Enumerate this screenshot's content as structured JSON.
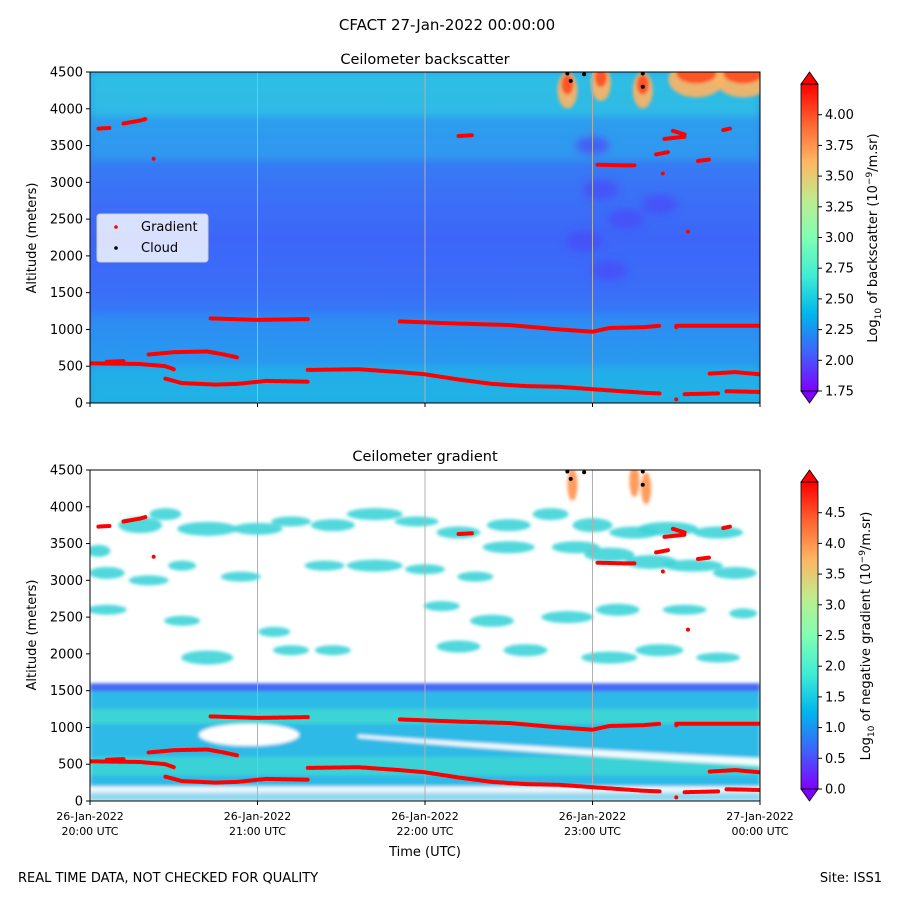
{
  "figure": {
    "title": "CFACT 27-Jan-2022 00:00:00",
    "footer_left": "REAL TIME DATA, NOT CHECKED FOR QUALITY",
    "footer_right": "Site: ISS1"
  },
  "colors": {
    "rainbow": [
      "#8000ff",
      "#4062fa",
      "#00b5eb",
      "#40ecd4",
      "#80ffb4",
      "#c0eb8d",
      "#ffb462",
      "#ff6231",
      "#ff0000"
    ],
    "gradient_marker": "#ff0000",
    "cloud_marker": "#000000",
    "vline": "#b0b0b0"
  },
  "chart_data": [
    {
      "type": "heatmap",
      "title": "Ceilometer backscatter",
      "xlabel": "",
      "ylabel": "Altitude (meters)",
      "ylim": [
        0,
        4500
      ],
      "yticks": [
        0,
        500,
        1000,
        1500,
        2000,
        2500,
        3000,
        3500,
        4000,
        4500
      ],
      "x_range_hours": [
        20,
        24
      ],
      "xtick_hours": [
        20,
        21,
        22,
        23,
        24
      ],
      "xtick_labels_shown": false,
      "grid": "vertical lines at hourly ticks",
      "colorbar": {
        "label_main": "Log",
        "label_sub": "10",
        "label_rest": " of backscatter (10",
        "label_sup": "−9",
        "label_end": "/m.sr)",
        "range": [
          1.75,
          4.25
        ],
        "ticks": [
          "1.75",
          "2.00",
          "2.25",
          "2.50",
          "2.75",
          "3.00",
          "3.25",
          "3.50",
          "3.75",
          "4.00"
        ],
        "tick_values": [
          1.75,
          2.0,
          2.25,
          2.5,
          2.75,
          3.0,
          3.25,
          3.5,
          3.75,
          4.0
        ]
      },
      "legend": {
        "position": "center-left",
        "entries": [
          {
            "label": "Gradient",
            "color": "#ff0000"
          },
          {
            "label": "Cloud",
            "color": "#000000"
          }
        ]
      }
    },
    {
      "type": "heatmap",
      "title": "Ceilometer gradient",
      "xlabel": "Time (UTC)",
      "ylabel": "Altitude (meters)",
      "ylim": [
        0,
        4500
      ],
      "yticks": [
        0,
        500,
        1000,
        1500,
        2000,
        2500,
        3000,
        3500,
        4000,
        4500
      ],
      "x_range_hours": [
        20,
        24
      ],
      "xtick_hours": [
        20,
        21,
        22,
        23,
        24
      ],
      "xtick_labels": [
        [
          "26-Jan-2022",
          "20:00 UTC"
        ],
        [
          "26-Jan-2022",
          "21:00 UTC"
        ],
        [
          "26-Jan-2022",
          "22:00 UTC"
        ],
        [
          "26-Jan-2022",
          "23:00 UTC"
        ],
        [
          "27-Jan-2022",
          "00:00 UTC"
        ]
      ],
      "colorbar": {
        "label_main": "Log",
        "label_sub": "10",
        "label_rest": " of negative gradient (10",
        "label_sup": "−9",
        "label_end": "/m.sr)",
        "range": [
          0,
          5
        ],
        "ticks": [
          "0.0",
          "0.5",
          "1.0",
          "1.5",
          "2.0",
          "2.5",
          "3.0",
          "3.5",
          "4.0",
          "4.5"
        ],
        "tick_values": [
          0,
          0.5,
          1.0,
          1.5,
          2.0,
          2.5,
          3.0,
          3.5,
          4.0,
          4.5
        ]
      }
    }
  ],
  "series": {
    "gradient_segments": [
      {
        "points": [
          [
            20.0,
            540
          ],
          [
            20.3,
            530
          ],
          [
            20.45,
            500
          ],
          [
            20.5,
            460
          ]
        ]
      },
      {
        "points": [
          [
            20.1,
            560
          ],
          [
            20.2,
            570
          ]
        ]
      },
      {
        "points": [
          [
            20.35,
            660
          ],
          [
            20.5,
            690
          ],
          [
            20.7,
            700
          ],
          [
            20.8,
            660
          ],
          [
            20.88,
            620
          ]
        ]
      },
      {
        "points": [
          [
            20.45,
            330
          ],
          [
            20.55,
            270
          ],
          [
            20.75,
            250
          ],
          [
            20.88,
            260
          ],
          [
            21.05,
            300
          ],
          [
            21.3,
            290
          ]
        ]
      },
      {
        "points": [
          [
            20.72,
            1150
          ],
          [
            21.0,
            1130
          ],
          [
            21.3,
            1140
          ]
        ]
      },
      {
        "points": [
          [
            21.3,
            450
          ],
          [
            21.6,
            460
          ],
          [
            21.85,
            420
          ],
          [
            22.0,
            390
          ],
          [
            22.2,
            320
          ],
          [
            22.4,
            260
          ],
          [
            22.6,
            230
          ],
          [
            22.8,
            220
          ],
          [
            23.05,
            180
          ],
          [
            23.3,
            140
          ],
          [
            23.4,
            130
          ]
        ]
      },
      {
        "points": [
          [
            21.85,
            1110
          ],
          [
            22.2,
            1080
          ],
          [
            22.5,
            1060
          ],
          [
            22.8,
            1000
          ],
          [
            23.0,
            970
          ],
          [
            23.1,
            1020
          ],
          [
            23.3,
            1030
          ],
          [
            23.4,
            1050
          ]
        ]
      },
      {
        "points": [
          [
            23.5,
            1050
          ],
          [
            23.7,
            1050
          ],
          [
            24.0,
            1050
          ]
        ]
      },
      {
        "points": [
          [
            23.55,
            120
          ],
          [
            23.75,
            130
          ]
        ]
      },
      {
        "points": [
          [
            23.7,
            400
          ],
          [
            23.85,
            420
          ],
          [
            24.0,
            390
          ]
        ]
      },
      {
        "points": [
          [
            23.8,
            160
          ],
          [
            24.0,
            150
          ]
        ]
      },
      {
        "points": [
          [
            20.05,
            3730
          ],
          [
            20.12,
            3740
          ]
        ]
      },
      {
        "points": [
          [
            20.2,
            3800
          ],
          [
            20.3,
            3840
          ],
          [
            20.33,
            3860
          ]
        ]
      },
      {
        "points": [
          [
            22.2,
            3630
          ],
          [
            22.28,
            3640
          ]
        ]
      },
      {
        "points": [
          [
            23.03,
            3240
          ],
          [
            23.2,
            3230
          ],
          [
            23.25,
            3230
          ]
        ]
      },
      {
        "points": [
          [
            23.38,
            3380
          ],
          [
            23.45,
            3410
          ]
        ]
      },
      {
        "points": [
          [
            23.43,
            3590
          ],
          [
            23.55,
            3620
          ]
        ]
      },
      {
        "points": [
          [
            23.48,
            3700
          ],
          [
            23.55,
            3650
          ]
        ]
      },
      {
        "points": [
          [
            23.63,
            3290
          ],
          [
            23.7,
            3310
          ]
        ]
      },
      {
        "points": [
          [
            23.78,
            3710
          ],
          [
            23.82,
            3730
          ]
        ]
      }
    ],
    "gradient_points": [
      [
        20.38,
        3320
      ],
      [
        23.42,
        3120
      ],
      [
        23.57,
        2330
      ],
      [
        23.5,
        1030
      ],
      [
        23.5,
        50
      ]
    ],
    "cloud_points": [
      [
        22.85,
        4480
      ],
      [
        22.87,
        4380
      ],
      [
        22.95,
        4470
      ],
      [
        23.3,
        4480
      ],
      [
        23.3,
        4300
      ]
    ],
    "backscatter_hotspots": [
      [
        22.85,
        4250
      ],
      [
        23.05,
        4350
      ],
      [
        23.3,
        4250
      ],
      [
        23.62,
        4400
      ],
      [
        23.9,
        4400
      ]
    ],
    "gradient_hotspots": [
      [
        22.88,
        4300
      ],
      [
        23.25,
        4350
      ],
      [
        23.32,
        4250
      ]
    ]
  }
}
